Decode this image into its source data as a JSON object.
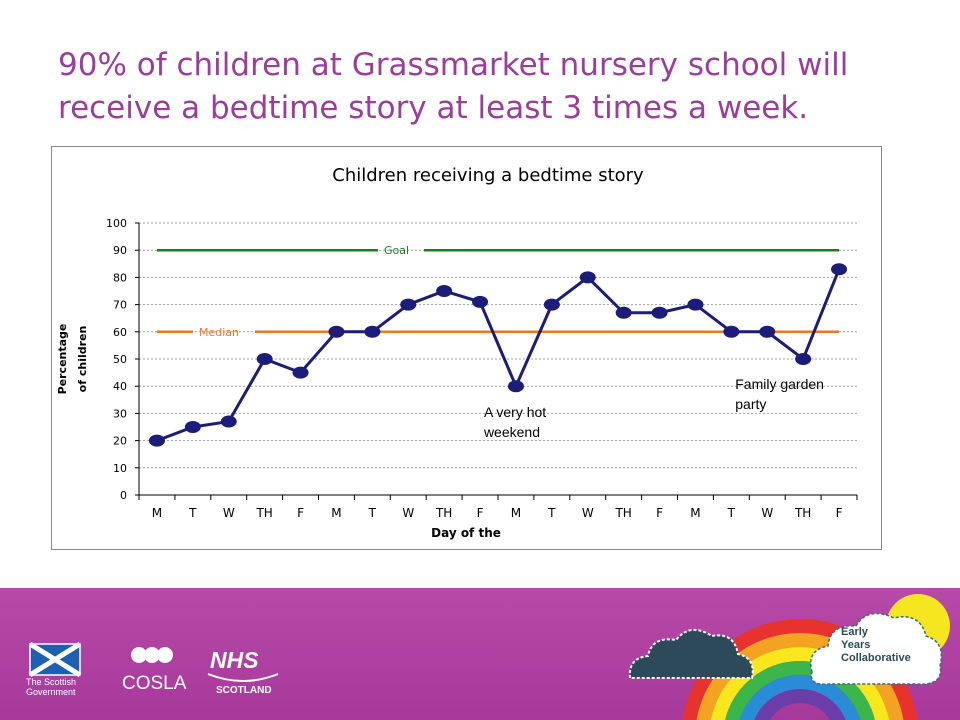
{
  "slide_title": "90% of children at Grassmarket nursery school will receive a bedtime story at least 3 times a week.",
  "chart_data": {
    "type": "line",
    "title": "Children receiving a bedtime story",
    "xlabel": "Day of the",
    "ylabel_line1": "Percentage",
    "ylabel_line2": "of children",
    "ylim": [
      0,
      100
    ],
    "yticks": [
      0,
      10,
      20,
      30,
      40,
      50,
      60,
      70,
      80,
      90,
      100
    ],
    "grid": "horizontal dashed",
    "categories": [
      "M",
      "T",
      "W",
      "TH",
      "F",
      "M",
      "T",
      "W",
      "TH",
      "F",
      "M",
      "T",
      "W",
      "TH",
      "F",
      "M",
      "T",
      "W",
      "TH",
      "F"
    ],
    "series": [
      {
        "name": "",
        "values": [
          20,
          25,
          27,
          50,
          45,
          60,
          60,
          70,
          75,
          71,
          40,
          70,
          80,
          67,
          67,
          70,
          60,
          60,
          50,
          83
        ],
        "color": "#1c1c7a"
      }
    ],
    "reference_lines": [
      {
        "name": "Goal",
        "value": 90,
        "color": "#1e7d1e"
      },
      {
        "name": "Median",
        "value": 60,
        "color": "#e87a1d"
      }
    ],
    "annotations": [
      {
        "line1": "A very hot",
        "line2": "weekend",
        "index": 10
      },
      {
        "line1": "Family garden",
        "line2": "party",
        "index": 17
      }
    ]
  },
  "logos": {
    "scottish_government_line1": "The Scottish",
    "scottish_government_line2": "Government",
    "cosla": "COSLA",
    "nhs": "NHS",
    "nhs_sub": "SCOTLAND",
    "eyc_line1": "Early",
    "eyc_line2": "Years",
    "eyc_line3": "Collaborative"
  },
  "colors": {
    "title": "#9b3d9b",
    "footer": "#a6399a"
  }
}
